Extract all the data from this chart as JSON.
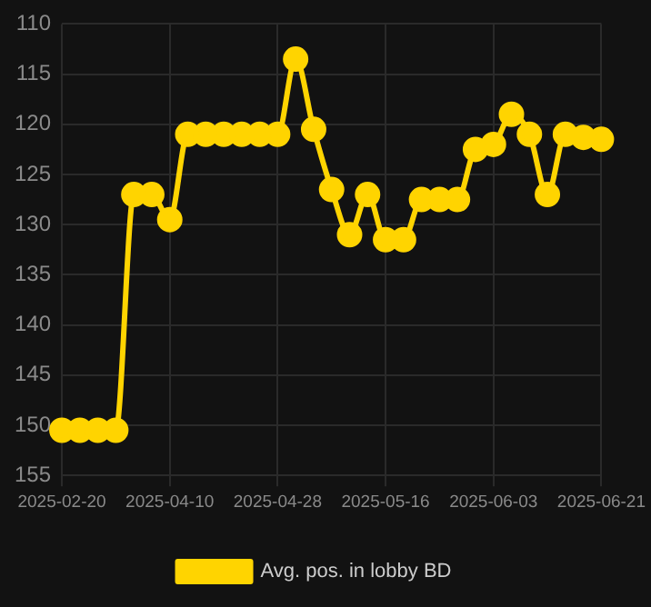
{
  "chart_data": {
    "type": "line",
    "categories": [
      "2025-02-20",
      null,
      null,
      null,
      null,
      null,
      "2025-04-10",
      null,
      null,
      null,
      null,
      null,
      "2025-04-28",
      null,
      null,
      null,
      null,
      null,
      "2025-05-16",
      null,
      null,
      null,
      null,
      null,
      "2025-06-03",
      null,
      null,
      null,
      null,
      null,
      "2025-06-21"
    ],
    "series": [
      {
        "name": "Avg. pos. in lobby BD",
        "color": "#ffd400",
        "values": [
          150.5,
          150.5,
          150.5,
          150.5,
          127,
          127,
          129.5,
          121,
          121,
          121,
          121,
          121,
          121,
          113.5,
          120.5,
          126.5,
          131,
          127,
          131.5,
          131.5,
          127.5,
          127.5,
          127.5,
          122.5,
          122,
          119,
          121,
          127,
          121,
          121.3,
          121.5
        ]
      }
    ],
    "ylim": [
      155,
      110
    ],
    "yticks": [
      110,
      115,
      120,
      125,
      130,
      135,
      140,
      145,
      150,
      155
    ],
    "grid": true,
    "legend": "bottom",
    "marker": "circle",
    "line_style": "solid"
  }
}
